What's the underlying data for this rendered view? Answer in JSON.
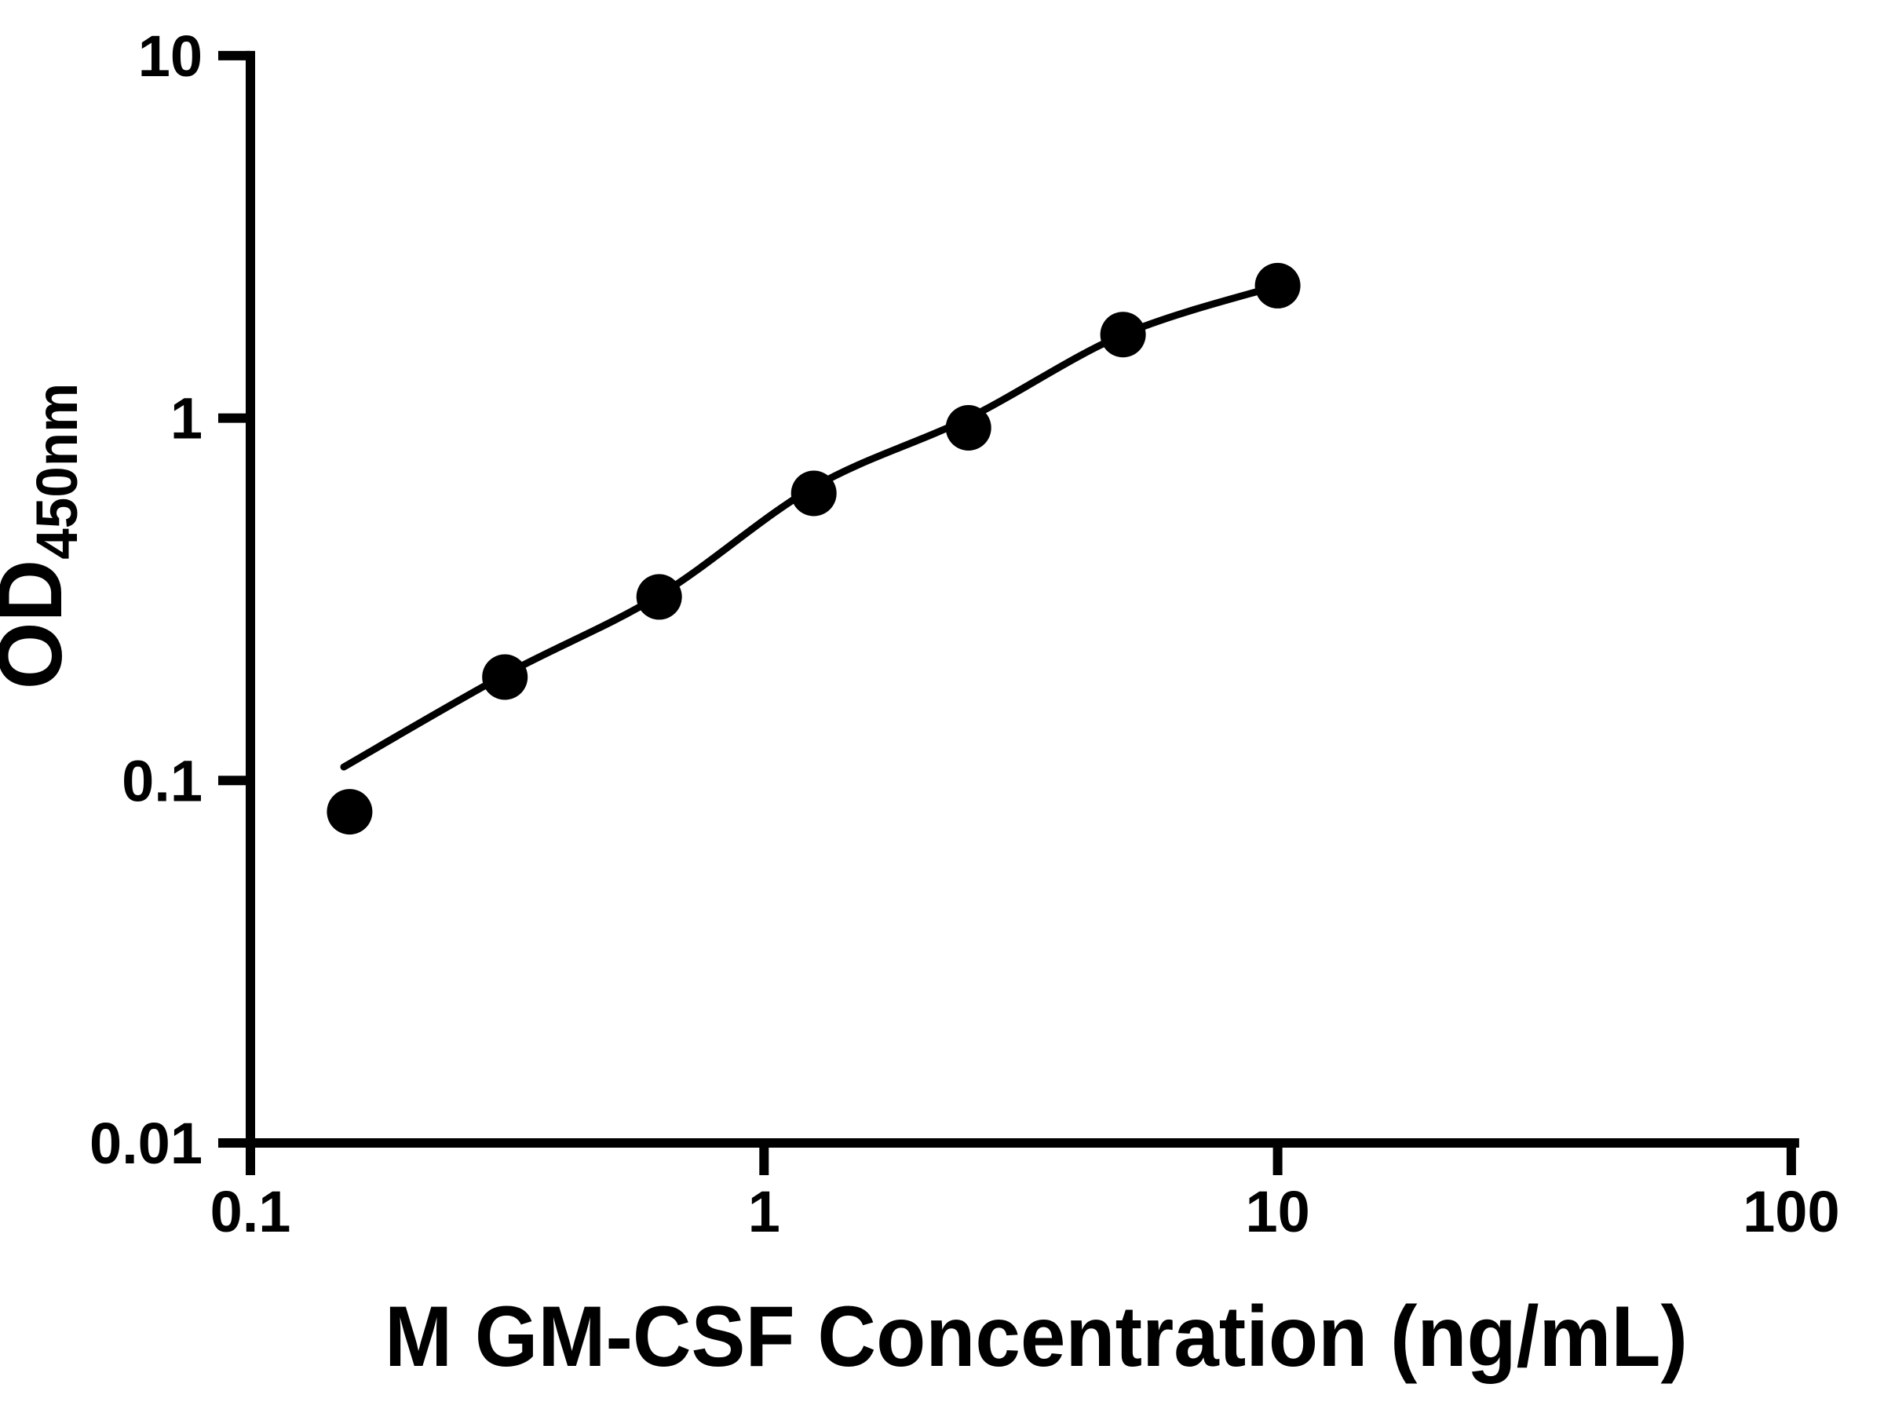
{
  "chart": {
    "x_title": "M GM-CSF Concentration (ng/mL)",
    "y_title_main": "OD",
    "y_title_sub": "450nm",
    "background_color": "#ffffff",
    "foreground_color": "#000000"
  },
  "chart_data": {
    "type": "scatter",
    "title": "",
    "xlabel": "M GM-CSF Concentration (ng/mL)",
    "ylabel": "OD450nm",
    "x_scale": "log",
    "y_scale": "log",
    "xlim": [
      0.1,
      100
    ],
    "ylim": [
      0.01,
      10
    ],
    "grid": false,
    "legend": false,
    "x_ticks": [
      0.1,
      1,
      10,
      100
    ],
    "x_tick_labels": [
      "0.1",
      "1",
      "10",
      "100"
    ],
    "y_ticks": [
      10,
      1,
      0.1,
      0.01
    ],
    "y_tick_labels": [
      "10",
      "1",
      "0.1",
      "0.01"
    ],
    "marker_color": "#000000",
    "line_color": "#000000",
    "series": [
      {
        "name": "standard-curve-points",
        "type": "scatter",
        "x": [
          0.156,
          0.313,
          0.625,
          1.25,
          2.5,
          5,
          10
        ],
        "y": [
          0.082,
          0.193,
          0.321,
          0.62,
          0.94,
          1.7,
          2.32
        ]
      },
      {
        "name": "fit-curve",
        "type": "line",
        "x": [
          0.152,
          0.313,
          0.625,
          1.25,
          2.5,
          5,
          10
        ],
        "y": [
          0.109,
          0.196,
          0.324,
          0.645,
          1.0,
          1.7,
          2.32
        ]
      }
    ]
  }
}
